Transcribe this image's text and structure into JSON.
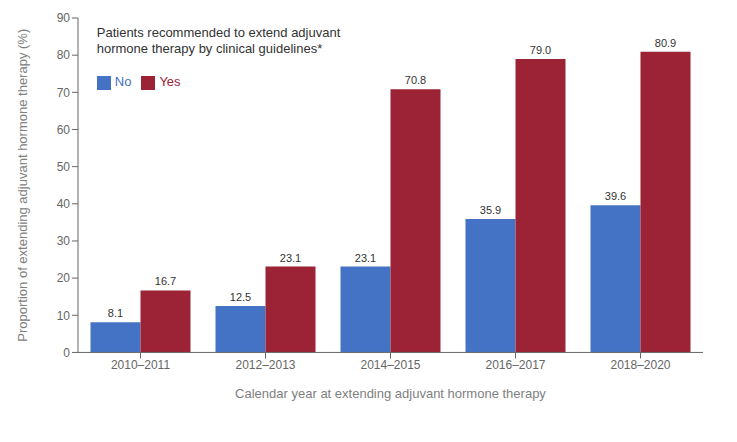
{
  "chart_data": {
    "type": "bar",
    "categories": [
      "2010–2011",
      "2012–2013",
      "2014–2015",
      "2016–2017",
      "2018–2020"
    ],
    "series": [
      {
        "name": "No",
        "color": "#4472C4",
        "values": [
          8.1,
          12.5,
          23.1,
          35.9,
          39.6
        ]
      },
      {
        "name": "Yes",
        "color": "#9B2335",
        "values": [
          16.7,
          23.1,
          70.8,
          79.0,
          80.9
        ],
        "value_labels": [
          "16.7",
          "23.1",
          "70.8",
          "79.0",
          "80.9"
        ]
      }
    ],
    "xlabel": "Calendar year at extending adjuvant hormone therapy",
    "ylabel": "Proportion of extending adjuvant hormone therapy (%)",
    "annotation": "Patients recommended to extend adjuvant\nhormone therapy by clinical guidelines*",
    "ylim": [
      0,
      90
    ],
    "yticks": [
      0,
      10,
      20,
      30,
      40,
      50,
      60,
      70,
      80,
      90
    ],
    "grid": false,
    "legend": "upper left",
    "data_labels": true
  }
}
